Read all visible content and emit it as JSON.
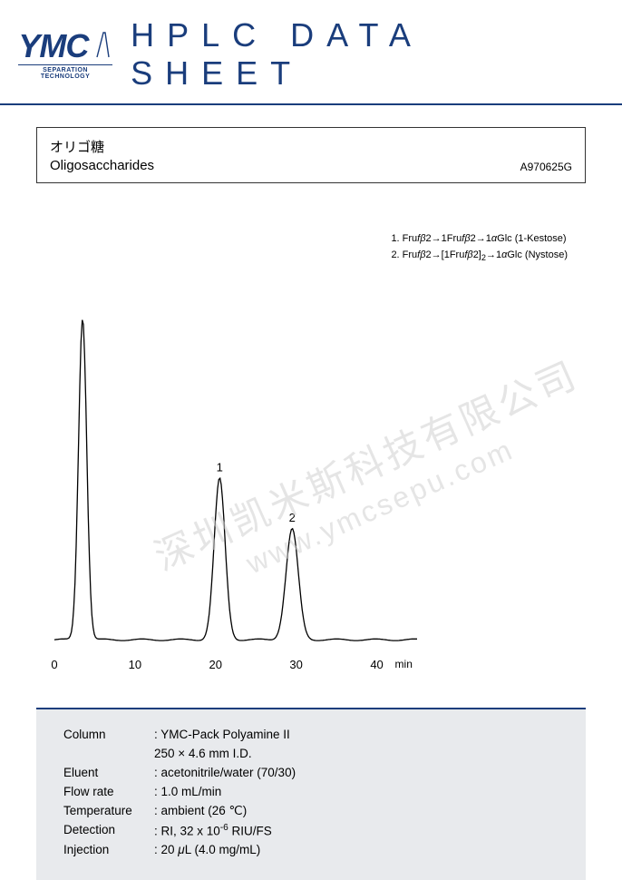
{
  "header": {
    "logo_text": "YMC",
    "logo_sub": "SEPARATION TECHNOLOGY",
    "title": "HPLC DATA SHEET",
    "accent_color": "#1a3d7c",
    "rule_color": "#1a3d7c"
  },
  "title_box": {
    "jp": "オリゴ糖",
    "en": "Oligosaccharides",
    "code": "A970625G"
  },
  "legend": {
    "items": [
      {
        "num": "1.",
        "formula": "Frufβ2→1Frufβ2→1αGlc",
        "name": "(1-Kestose)"
      },
      {
        "num": "2.",
        "formula": "Frufβ2→[1Frufβ2]₂→1αGlc",
        "name": "(Nystose)"
      }
    ]
  },
  "chromatogram": {
    "type": "line",
    "xlim": [
      0,
      45
    ],
    "ylim": [
      0,
      100
    ],
    "x_ticks": [
      0,
      10,
      20,
      30,
      40
    ],
    "x_unit": "min",
    "line_color": "#000000",
    "line_width": 1.3,
    "baseline_y": 4,
    "peaks": [
      {
        "x": 3.5,
        "height": 96,
        "width": 1.2,
        "label": ""
      },
      {
        "x": 20.5,
        "height": 48,
        "width": 1.6,
        "label": "1"
      },
      {
        "x": 29.5,
        "height": 33,
        "width": 1.8,
        "label": "2"
      }
    ],
    "peak_label_fontsize": 13
  },
  "watermarks": {
    "wm1": "深圳凯米斯科技有限公司",
    "wm2": "www.ymcsepu.com",
    "color": "#d0d0d0"
  },
  "conditions": {
    "background": "#e8eaed",
    "border_color": "#1a3d7c",
    "rows": [
      {
        "label": "Column",
        "value": ": YMC-Pack Polyamine II"
      },
      {
        "label": "",
        "value": "  250 × 4.6 mm I.D."
      },
      {
        "label": "Eluent",
        "value": ": acetonitrile/water (70/30)"
      },
      {
        "label": "Flow rate",
        "value": ": 1.0 mL/min"
      },
      {
        "label": "Temperature",
        "value": ": ambient (26 ℃)"
      },
      {
        "label": "Detection",
        "value": ": RI, 32 x 10⁻⁶ RIU/FS"
      },
      {
        "label": "Injection",
        "value": ": 20 μL (4.0 mg/mL)"
      }
    ]
  }
}
